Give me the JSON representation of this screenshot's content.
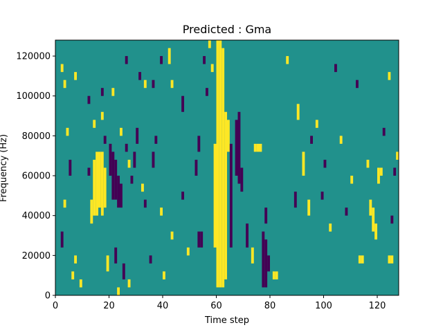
{
  "chart_data": {
    "type": "heatmap",
    "title": "Predicted : Gma",
    "xlabel": "Time step",
    "ylabel": "Frequency (Hz)",
    "xlim": [
      0,
      128
    ],
    "ylim": [
      0,
      128000
    ],
    "x_ticks": [
      0,
      20,
      40,
      60,
      80,
      100,
      120
    ],
    "x_tick_labels": [
      "0",
      "20",
      "40",
      "60",
      "80",
      "100",
      "120"
    ],
    "y_ticks": [
      0,
      20000,
      40000,
      60000,
      80000,
      100000,
      120000
    ],
    "y_tick_labels": [
      "0",
      "20000",
      "40000",
      "60000",
      "80000",
      "100000",
      "120000"
    ],
    "colormap": "viridis",
    "value_levels": [
      {
        "value": -1,
        "color": "#440154"
      },
      {
        "value": 0,
        "color": "#21918c"
      },
      {
        "value": 1,
        "color": "#fde725"
      }
    ],
    "background_value": 0,
    "grid": false,
    "frequency_bin_hz": 4000,
    "cells": [
      {
        "t": 60,
        "f0": 4000,
        "f1": 128000,
        "v": 1
      },
      {
        "t": 61,
        "f0": 4000,
        "f1": 128000,
        "v": 1
      },
      {
        "t": 62,
        "f0": 4000,
        "f1": 124000,
        "v": 1
      },
      {
        "t": 63,
        "f0": 8000,
        "f1": 92000,
        "v": 1
      },
      {
        "t": 59,
        "f0": 24000,
        "f1": 76000,
        "v": 1
      },
      {
        "t": 64,
        "f0": 72000,
        "f1": 88000,
        "v": 1
      },
      {
        "t": 14,
        "f0": 40000,
        "f1": 68000,
        "v": 1
      },
      {
        "t": 15,
        "f0": 40000,
        "f1": 72000,
        "v": 1
      },
      {
        "t": 16,
        "f0": 44000,
        "f1": 72000,
        "v": 1
      },
      {
        "t": 17,
        "f0": 40000,
        "f1": 72000,
        "v": 1
      },
      {
        "t": 18,
        "f0": 44000,
        "f1": 64000,
        "v": 1
      },
      {
        "t": 13,
        "f0": 36000,
        "f1": 48000,
        "v": 1
      },
      {
        "t": 20,
        "f0": 60000,
        "f1": 76000,
        "v": -1
      },
      {
        "t": 21,
        "f0": 48000,
        "f1": 72000,
        "v": -1
      },
      {
        "t": 22,
        "f0": 48000,
        "f1": 68000,
        "v": -1
      },
      {
        "t": 23,
        "f0": 44000,
        "f1": 60000,
        "v": -1
      },
      {
        "t": 24,
        "f0": 44000,
        "f1": 56000,
        "v": -1
      },
      {
        "t": 67,
        "f0": 60000,
        "f1": 88000,
        "v": -1
      },
      {
        "t": 68,
        "f0": 56000,
        "f1": 92000,
        "v": -1
      },
      {
        "t": 69,
        "f0": 52000,
        "f1": 64000,
        "v": -1
      },
      {
        "t": 65,
        "f0": 24000,
        "f1": 76000,
        "v": -1
      },
      {
        "t": 71,
        "f0": 24000,
        "f1": 36000,
        "v": -1
      },
      {
        "t": 77,
        "f0": 4000,
        "f1": 32000,
        "v": -1
      },
      {
        "t": 78,
        "f0": 4000,
        "f1": 28000,
        "v": -1
      },
      {
        "t": 78,
        "f0": 36000,
        "f1": 44000,
        "v": -1
      },
      {
        "t": 79,
        "f0": 12000,
        "f1": 20000,
        "v": -1
      },
      {
        "t": 89,
        "f0": 44000,
        "f1": 52000,
        "v": -1
      },
      {
        "t": 74,
        "f0": 72000,
        "f1": 76000,
        "v": 1
      },
      {
        "t": 75,
        "f0": 72000,
        "f1": 76000,
        "v": 1
      },
      {
        "t": 76,
        "f0": 72000,
        "f1": 76000,
        "v": 1
      },
      {
        "t": 73,
        "f0": 16000,
        "f1": 24000,
        "v": 1
      },
      {
        "t": 81,
        "f0": 8000,
        "f1": 12000,
        "v": 1
      },
      {
        "t": 82,
        "f0": 8000,
        "f1": 12000,
        "v": 1
      },
      {
        "t": 113,
        "f0": 16000,
        "f1": 20000,
        "v": 1
      },
      {
        "t": 114,
        "f0": 16000,
        "f1": 20000,
        "v": 1
      },
      {
        "t": 124,
        "f0": 16000,
        "f1": 20000,
        "v": 1
      },
      {
        "t": 125,
        "f0": 16000,
        "f1": 20000,
        "v": 1
      },
      {
        "t": 120,
        "f0": 56000,
        "f1": 64000,
        "v": 1
      },
      {
        "t": 121,
        "f0": 60000,
        "f1": 64000,
        "v": 1
      },
      {
        "t": 117,
        "f0": 40000,
        "f1": 48000,
        "v": 1
      },
      {
        "t": 118,
        "f0": 32000,
        "f1": 44000,
        "v": 1
      },
      {
        "t": 119,
        "f0": 28000,
        "f1": 36000,
        "v": 1
      },
      {
        "t": 12,
        "f0": 60000,
        "f1": 64000,
        "v": -1
      },
      {
        "t": 5,
        "f0": 60000,
        "f1": 68000,
        "v": -1
      },
      {
        "t": 30,
        "f0": 76000,
        "f1": 84000,
        "v": -1
      },
      {
        "t": 29,
        "f0": 64000,
        "f1": 72000,
        "v": -1
      },
      {
        "t": 36,
        "f0": 64000,
        "f1": 72000,
        "v": -1
      },
      {
        "t": 37,
        "f0": 76000,
        "f1": 80000,
        "v": -1
      },
      {
        "t": 47,
        "f0": 92000,
        "f1": 100000,
        "v": -1
      },
      {
        "t": 52,
        "f0": 60000,
        "f1": 68000,
        "v": -1
      },
      {
        "t": 53,
        "f0": 72000,
        "f1": 80000,
        "v": -1
      },
      {
        "t": 53,
        "f0": 24000,
        "f1": 32000,
        "v": -1
      },
      {
        "t": 54,
        "f0": 24000,
        "f1": 32000,
        "v": -1
      },
      {
        "t": 56,
        "f0": 100000,
        "f1": 104000,
        "v": -1
      },
      {
        "t": 55,
        "f0": 116000,
        "f1": 120000,
        "v": -1
      },
      {
        "t": 57,
        "f0": 124000,
        "f1": 128000,
        "v": 1
      },
      {
        "t": 58,
        "f0": 112000,
        "f1": 116000,
        "v": 1
      },
      {
        "t": 42,
        "f0": 116000,
        "f1": 124000,
        "v": 1
      },
      {
        "t": 43,
        "f0": 104000,
        "f1": 108000,
        "v": 1
      },
      {
        "t": 36,
        "f0": 104000,
        "f1": 108000,
        "v": -1
      },
      {
        "t": 39,
        "f0": 116000,
        "f1": 120000,
        "v": -1
      },
      {
        "t": 26,
        "f0": 116000,
        "f1": 120000,
        "v": -1
      },
      {
        "t": 31,
        "f0": 108000,
        "f1": 112000,
        "v": -1
      },
      {
        "t": 33,
        "f0": 104000,
        "f1": 108000,
        "v": 1
      },
      {
        "t": 17,
        "f0": 100000,
        "f1": 104000,
        "v": -1
      },
      {
        "t": 21,
        "f0": 100000,
        "f1": 104000,
        "v": 1
      },
      {
        "t": 7,
        "f0": 108000,
        "f1": 112000,
        "v": 1
      },
      {
        "t": 3,
        "f0": 104000,
        "f1": 108000,
        "v": 1
      },
      {
        "t": 2,
        "f0": 112000,
        "f1": 116000,
        "v": 1
      },
      {
        "t": 12,
        "f0": 96000,
        "f1": 100000,
        "v": -1
      },
      {
        "t": 14,
        "f0": 84000,
        "f1": 88000,
        "v": 1
      },
      {
        "t": 17,
        "f0": 88000,
        "f1": 92000,
        "v": 1
      },
      {
        "t": 18,
        "f0": 76000,
        "f1": 80000,
        "v": -1
      },
      {
        "t": 24,
        "f0": 80000,
        "f1": 84000,
        "v": 1
      },
      {
        "t": 26,
        "f0": 72000,
        "f1": 76000,
        "v": -1
      },
      {
        "t": 27,
        "f0": 64000,
        "f1": 68000,
        "v": 1
      },
      {
        "t": 28,
        "f0": 56000,
        "f1": 60000,
        "v": -1
      },
      {
        "t": 32,
        "f0": 52000,
        "f1": 56000,
        "v": 1
      },
      {
        "t": 33,
        "f0": 44000,
        "f1": 48000,
        "v": -1
      },
      {
        "t": 39,
        "f0": 40000,
        "f1": 44000,
        "v": 1
      },
      {
        "t": 43,
        "f0": 28000,
        "f1": 32000,
        "v": 1
      },
      {
        "t": 47,
        "f0": 48000,
        "f1": 52000,
        "v": -1
      },
      {
        "t": 49,
        "f0": 20000,
        "f1": 24000,
        "v": 1
      },
      {
        "t": 40,
        "f0": 8000,
        "f1": 12000,
        "v": 1
      },
      {
        "t": 35,
        "f0": 16000,
        "f1": 20000,
        "v": -1
      },
      {
        "t": 27,
        "f0": 4000,
        "f1": 8000,
        "v": 1
      },
      {
        "t": 23,
        "f0": 0,
        "f1": 4000,
        "v": 1
      },
      {
        "t": 19,
        "f0": 12000,
        "f1": 20000,
        "v": 1
      },
      {
        "t": 22,
        "f0": 16000,
        "f1": 24000,
        "v": -1
      },
      {
        "t": 25,
        "f0": 8000,
        "f1": 16000,
        "v": -1
      },
      {
        "t": 9,
        "f0": 4000,
        "f1": 8000,
        "v": 1
      },
      {
        "t": 6,
        "f0": 8000,
        "f1": 12000,
        "v": 1
      },
      {
        "t": 7,
        "f0": 16000,
        "f1": 20000,
        "v": 1
      },
      {
        "t": 2,
        "f0": 24000,
        "f1": 32000,
        "v": -1
      },
      {
        "t": 3,
        "f0": 44000,
        "f1": 48000,
        "v": 1
      },
      {
        "t": 4,
        "f0": 80000,
        "f1": 84000,
        "v": 1
      },
      {
        "t": 86,
        "f0": 116000,
        "f1": 120000,
        "v": 1
      },
      {
        "t": 90,
        "f0": 88000,
        "f1": 96000,
        "v": 1
      },
      {
        "t": 92,
        "f0": 60000,
        "f1": 72000,
        "v": 1
      },
      {
        "t": 94,
        "f0": 40000,
        "f1": 48000,
        "v": 1
      },
      {
        "t": 95,
        "f0": 76000,
        "f1": 80000,
        "v": -1
      },
      {
        "t": 97,
        "f0": 84000,
        "f1": 88000,
        "v": 1
      },
      {
        "t": 99,
        "f0": 48000,
        "f1": 52000,
        "v": -1
      },
      {
        "t": 100,
        "f0": 64000,
        "f1": 68000,
        "v": -1
      },
      {
        "t": 102,
        "f0": 32000,
        "f1": 36000,
        "v": 1
      },
      {
        "t": 104,
        "f0": 112000,
        "f1": 116000,
        "v": -1
      },
      {
        "t": 106,
        "f0": 76000,
        "f1": 80000,
        "v": 1
      },
      {
        "t": 108,
        "f0": 40000,
        "f1": 44000,
        "v": -1
      },
      {
        "t": 110,
        "f0": 56000,
        "f1": 60000,
        "v": 1
      },
      {
        "t": 112,
        "f0": 104000,
        "f1": 108000,
        "v": -1
      },
      {
        "t": 116,
        "f0": 64000,
        "f1": 68000,
        "v": 1
      },
      {
        "t": 122,
        "f0": 80000,
        "f1": 84000,
        "v": -1
      },
      {
        "t": 124,
        "f0": 108000,
        "f1": 112000,
        "v": 1
      },
      {
        "t": 126,
        "f0": 60000,
        "f1": 64000,
        "v": -1
      },
      {
        "t": 127,
        "f0": 68000,
        "f1": 72000,
        "v": 1
      },
      {
        "t": 125,
        "f0": 36000,
        "f1": 40000,
        "v": -1
      }
    ]
  }
}
